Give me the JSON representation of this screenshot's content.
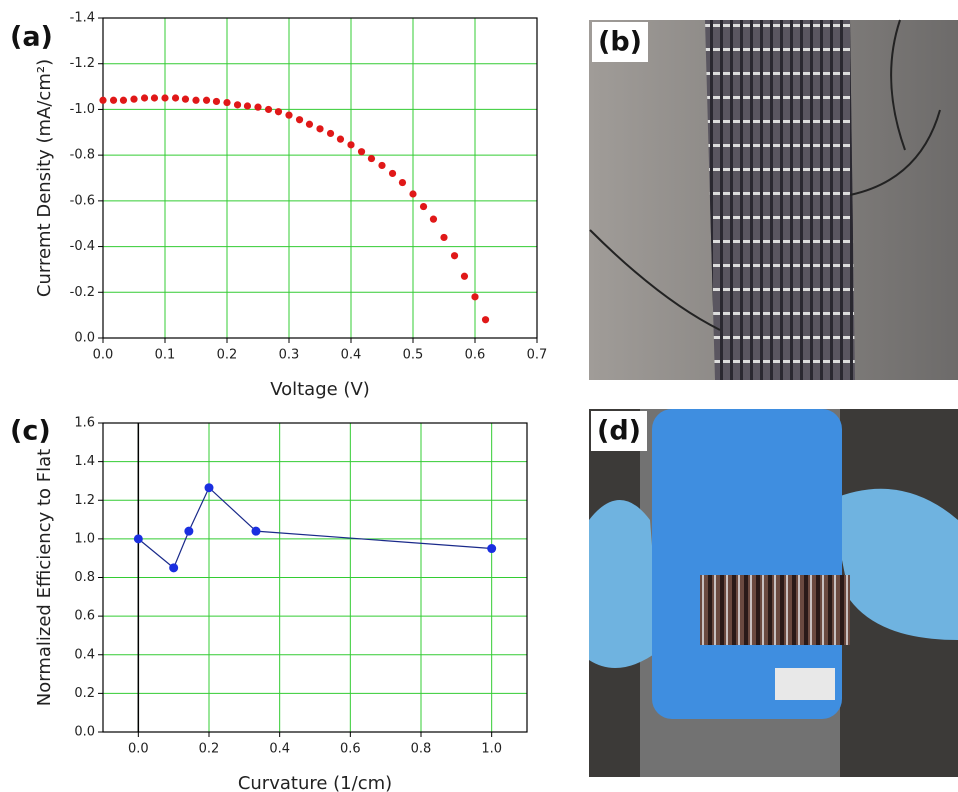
{
  "chart_data": [
    {
      "type": "scatter",
      "panel_label": "(a)",
      "x_label": "Voltage (V)",
      "y_label": "Curremt Density (mA/cm²)",
      "x": [
        0,
        0.017,
        0.033,
        0.05,
        0.067,
        0.083,
        0.1,
        0.117,
        0.133,
        0.15,
        0.167,
        0.183,
        0.2,
        0.217,
        0.233,
        0.25,
        0.267,
        0.283,
        0.3,
        0.317,
        0.333,
        0.35,
        0.367,
        0.383,
        0.4,
        0.417,
        0.433,
        0.45,
        0.467,
        0.483,
        0.5,
        0.517,
        0.533,
        0.55,
        0.567,
        0.583,
        0.6,
        0.617
      ],
      "values": [
        -1.04,
        -1.04,
        -1.04,
        -1.045,
        -1.05,
        -1.05,
        -1.05,
        -1.05,
        -1.045,
        -1.04,
        -1.04,
        -1.035,
        -1.03,
        -1.02,
        -1.015,
        -1.01,
        -1.0,
        -0.99,
        -0.975,
        -0.955,
        -0.935,
        -0.915,
        -0.895,
        -0.87,
        -0.845,
        -0.815,
        -0.785,
        -0.755,
        -0.72,
        -0.68,
        -0.63,
        -0.575,
        -0.52,
        -0.44,
        -0.36,
        -0.27,
        -0.18,
        -0.08
      ],
      "color": "#e01818",
      "xlim": [
        0,
        0.7
      ],
      "xticks": [
        {
          "value": 0,
          "label": "0.0"
        },
        0.1,
        0.2,
        0.3,
        0.4,
        0.5,
        0.6,
        0.7
      ],
      "ylim": [
        0,
        -1.4
      ],
      "yticks": [
        {
          "value": 0,
          "label": "0.0"
        },
        -0.2,
        -0.4,
        -0.6,
        -0.8,
        {
          "value": -1,
          "label": "-1.0"
        },
        -1.2,
        -1.4
      ],
      "grid": true,
      "grid_color": "#33cc33"
    },
    {
      "type": "line",
      "panel_label": "(c)",
      "x_label": "Curvature (1/cm)",
      "y_label": "Normalized Efficiency to Flat",
      "x": [
        0,
        0.1,
        0.143,
        0.2,
        0.333,
        1.0
      ],
      "values": [
        1.0,
        0.85,
        1.04,
        1.265,
        1.04,
        0.95
      ],
      "color": "#1a2fe0",
      "line_color": "#1a2a8a",
      "xlim": [
        -0.1,
        1.1
      ],
      "xticks": [
        {
          "value": 0,
          "label": "0.0"
        },
        0.2,
        0.4,
        0.6,
        0.8,
        {
          "value": 1,
          "label": "1.0"
        }
      ],
      "ylim": [
        0,
        1.6
      ],
      "yticks": [
        {
          "value": 0,
          "label": "0.0"
        },
        0.2,
        0.4,
        0.6,
        0.8,
        {
          "value": 1,
          "label": "1.0"
        },
        1.2,
        1.4,
        1.6
      ],
      "grid": true,
      "grid_color": "#33cc33",
      "zero_line": true
    }
  ],
  "photos": [
    {
      "label": "(b)"
    },
    {
      "label": "(d)"
    }
  ]
}
